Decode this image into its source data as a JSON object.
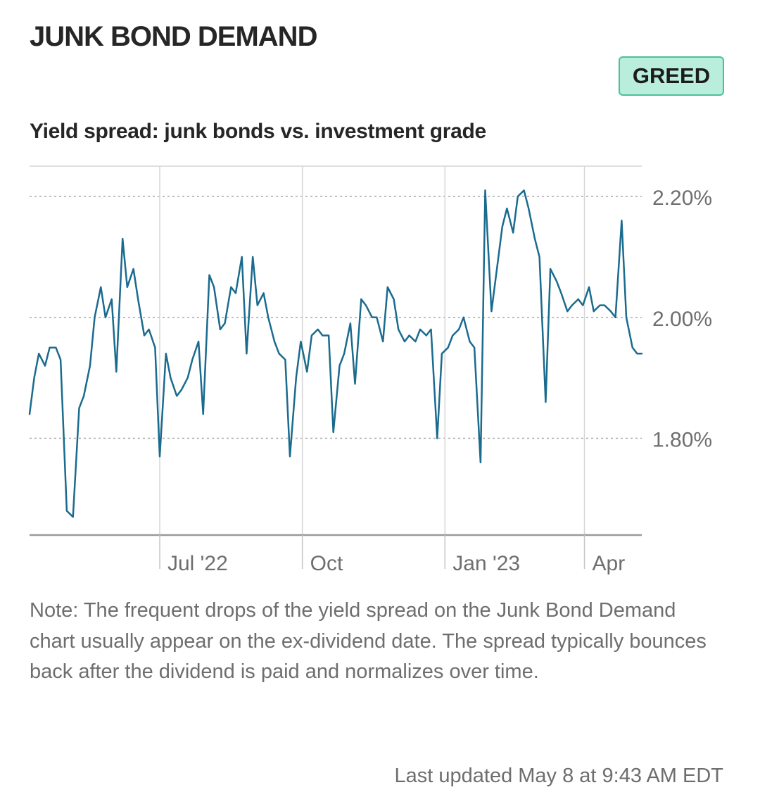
{
  "header": {
    "title": "JUNK BOND DEMAND",
    "badge": "GREED",
    "badge_colors": {
      "fill": "#b9eedc",
      "border": "#4dbf9a"
    }
  },
  "chart_data": {
    "type": "line",
    "title": "Yield spread: junk bonds vs. investment grade",
    "xlabel": "",
    "ylabel": "",
    "x_ticks": [
      "Jul '22",
      "Oct",
      "Jan '23",
      "Apr"
    ],
    "x_range": [
      "2022-04-08",
      "2023-05-08"
    ],
    "y_ticks": [
      "2.20%",
      "2.00%",
      "1.80%"
    ],
    "y_tick_values": [
      2.2,
      2.0,
      1.8
    ],
    "ylim": [
      1.64,
      2.25
    ],
    "y_unit": "%",
    "grid": true,
    "legend": "none",
    "line_color": "#1a6b8e",
    "series": [
      {
        "name": "",
        "x": [
          "2022-04-08",
          "2022-04-11",
          "2022-04-14",
          "2022-04-18",
          "2022-04-21",
          "2022-04-25",
          "2022-04-28",
          "2022-05-02",
          "2022-05-06",
          "2022-05-10",
          "2022-05-13",
          "2022-05-17",
          "2022-05-20",
          "2022-05-24",
          "2022-05-27",
          "2022-05-31",
          "2022-06-03",
          "2022-06-07",
          "2022-06-10",
          "2022-06-14",
          "2022-06-17",
          "2022-06-21",
          "2022-06-24",
          "2022-06-28",
          "2022-07-01",
          "2022-07-05",
          "2022-07-08",
          "2022-07-12",
          "2022-07-15",
          "2022-07-19",
          "2022-07-22",
          "2022-07-26",
          "2022-07-29",
          "2022-08-02",
          "2022-08-05",
          "2022-08-09",
          "2022-08-12",
          "2022-08-16",
          "2022-08-19",
          "2022-08-23",
          "2022-08-26",
          "2022-08-30",
          "2022-09-02",
          "2022-09-06",
          "2022-09-09",
          "2022-09-13",
          "2022-09-16",
          "2022-09-20",
          "2022-09-23",
          "2022-09-27",
          "2022-09-30",
          "2022-10-04",
          "2022-10-07",
          "2022-10-11",
          "2022-10-14",
          "2022-10-18",
          "2022-10-21",
          "2022-10-25",
          "2022-10-28",
          "2022-11-01",
          "2022-11-04",
          "2022-11-08",
          "2022-11-11",
          "2022-11-15",
          "2022-11-18",
          "2022-11-22",
          "2022-11-25",
          "2022-11-29",
          "2022-12-02",
          "2022-12-06",
          "2022-12-09",
          "2022-12-13",
          "2022-12-16",
          "2022-12-20",
          "2022-12-23",
          "2022-12-27",
          "2022-12-30",
          "2023-01-03",
          "2023-01-06",
          "2023-01-10",
          "2023-01-13",
          "2023-01-17",
          "2023-01-20",
          "2023-01-24",
          "2023-01-27",
          "2023-01-31",
          "2023-02-03",
          "2023-02-07",
          "2023-02-10",
          "2023-02-14",
          "2023-02-17",
          "2023-02-21",
          "2023-02-24",
          "2023-02-28",
          "2023-03-03",
          "2023-03-07",
          "2023-03-10",
          "2023-03-14",
          "2023-03-17",
          "2023-03-21",
          "2023-03-24",
          "2023-03-28",
          "2023-03-31",
          "2023-04-04",
          "2023-04-07",
          "2023-04-11",
          "2023-04-14",
          "2023-04-18",
          "2023-04-21",
          "2023-04-25",
          "2023-04-28",
          "2023-05-02",
          "2023-05-05",
          "2023-05-08"
        ],
        "values": [
          1.84,
          1.9,
          1.94,
          1.92,
          1.95,
          1.95,
          1.93,
          1.68,
          1.67,
          1.85,
          1.87,
          1.92,
          2.0,
          2.05,
          2.0,
          2.03,
          1.91,
          2.13,
          2.05,
          2.08,
          2.03,
          1.97,
          1.98,
          1.95,
          1.77,
          1.94,
          1.9,
          1.87,
          1.88,
          1.9,
          1.93,
          1.96,
          1.84,
          2.07,
          2.05,
          1.98,
          1.99,
          2.05,
          2.04,
          2.1,
          1.94,
          2.1,
          2.02,
          2.04,
          2.0,
          1.96,
          1.94,
          1.93,
          1.77,
          1.9,
          1.96,
          1.91,
          1.97,
          1.98,
          1.97,
          1.97,
          1.81,
          1.92,
          1.94,
          1.99,
          1.89,
          2.03,
          2.02,
          2.0,
          2.0,
          1.96,
          2.05,
          2.03,
          1.98,
          1.96,
          1.97,
          1.96,
          1.98,
          1.97,
          1.98,
          1.8,
          1.94,
          1.95,
          1.97,
          1.98,
          2.0,
          1.96,
          1.95,
          1.76,
          2.21,
          2.01,
          2.07,
          2.15,
          2.18,
          2.14,
          2.2,
          2.21,
          2.18,
          2.13,
          2.1,
          1.86,
          2.08,
          2.06,
          2.04,
          2.01,
          2.02,
          2.03,
          2.02,
          2.05,
          2.01,
          2.02,
          2.02,
          2.01,
          2.0,
          2.16,
          2.0,
          1.95,
          1.94,
          1.94
        ]
      }
    ]
  },
  "note": "Note: The frequent drops of the yield spread on the Junk Bond Demand chart usually appear on the ex-dividend date. The spread typically bounces back after the dividend is paid and normalizes over time.",
  "updated": "Last updated May 8 at 9:43 AM EDT"
}
